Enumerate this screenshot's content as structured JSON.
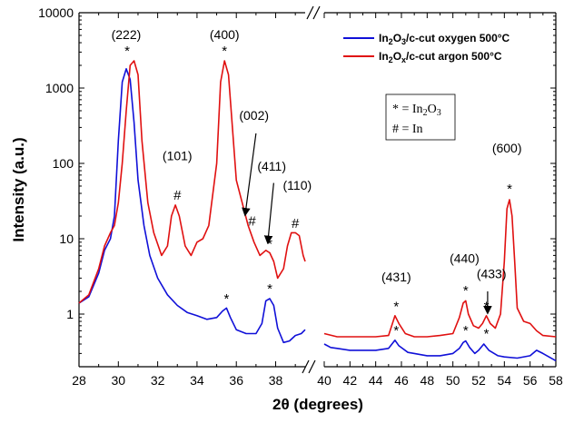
{
  "chart_data": {
    "type": "line",
    "xlabel": "2θ (degrees)",
    "ylabel": "Intensity (a.u.)",
    "y_scale": "log",
    "ylim": [
      0.2,
      10000
    ],
    "x_axis_break": [
      39.5,
      40
    ],
    "x_segments": [
      [
        28,
        39.5
      ],
      [
        40,
        58
      ]
    ],
    "x_ticks": [
      "28",
      "30",
      "32",
      "34",
      "36",
      "38",
      "40",
      "42",
      "44",
      "46",
      "48",
      "50",
      "52",
      "54",
      "56",
      "58"
    ],
    "y_ticks": [
      "1",
      "10",
      "100",
      "1000",
      "10000"
    ],
    "grid": false,
    "legend_position": "top-right",
    "series": [
      {
        "name": "In2O3/c-cut oxygen 500°C",
        "color": "#1010d8",
        "segments": [
          [
            [
              28,
              1.4
            ],
            [
              28.5,
              1.7
            ],
            [
              29,
              3.5
            ],
            [
              29.3,
              7
            ],
            [
              29.6,
              10
            ],
            [
              29.8,
              20
            ],
            [
              30.0,
              200
            ],
            [
              30.2,
              1200
            ],
            [
              30.4,
              1800
            ],
            [
              30.6,
              1300
            ],
            [
              30.8,
              350
            ],
            [
              31.0,
              60
            ],
            [
              31.3,
              15
            ],
            [
              31.6,
              6
            ],
            [
              32,
              3
            ],
            [
              32.5,
              1.8
            ],
            [
              33,
              1.3
            ],
            [
              33.5,
              1.05
            ],
            [
              34,
              0.95
            ],
            [
              34.5,
              0.85
            ],
            [
              35,
              0.9
            ],
            [
              35.3,
              1.1
            ],
            [
              35.5,
              1.2
            ],
            [
              35.7,
              0.9
            ],
            [
              36,
              0.62
            ],
            [
              36.5,
              0.55
            ],
            [
              37,
              0.55
            ],
            [
              37.3,
              0.75
            ],
            [
              37.5,
              1.5
            ],
            [
              37.7,
              1.6
            ],
            [
              37.9,
              1.3
            ],
            [
              38.1,
              0.65
            ],
            [
              38.4,
              0.42
            ],
            [
              38.7,
              0.44
            ],
            [
              39,
              0.52
            ],
            [
              39.3,
              0.55
            ],
            [
              39.5,
              0.62
            ]
          ],
          [
            [
              40,
              0.4
            ],
            [
              40.5,
              0.36
            ],
            [
              41,
              0.35
            ],
            [
              42,
              0.33
            ],
            [
              43,
              0.33
            ],
            [
              44,
              0.33
            ],
            [
              45,
              0.35
            ],
            [
              45.5,
              0.45
            ],
            [
              45.8,
              0.38
            ],
            [
              46.5,
              0.31
            ],
            [
              47,
              0.3
            ],
            [
              48,
              0.28
            ],
            [
              49,
              0.28
            ],
            [
              50,
              0.3
            ],
            [
              50.5,
              0.35
            ],
            [
              50.8,
              0.42
            ],
            [
              51,
              0.44
            ],
            [
              51.3,
              0.36
            ],
            [
              51.7,
              0.3
            ],
            [
              52,
              0.33
            ],
            [
              52.4,
              0.4
            ],
            [
              52.8,
              0.33
            ],
            [
              53.5,
              0.28
            ],
            [
              54,
              0.27
            ],
            [
              55,
              0.26
            ],
            [
              56,
              0.28
            ],
            [
              56.5,
              0.33
            ],
            [
              57,
              0.3
            ],
            [
              58,
              0.24
            ]
          ]
        ]
      },
      {
        "name": "In2Ox/c-cut argon 500°C",
        "color": "#e01010",
        "segments": [
          [
            [
              28,
              1.4
            ],
            [
              28.5,
              1.8
            ],
            [
              29,
              4
            ],
            [
              29.3,
              8
            ],
            [
              29.6,
              12
            ],
            [
              29.8,
              15
            ],
            [
              30.0,
              30
            ],
            [
              30.2,
              100
            ],
            [
              30.4,
              500
            ],
            [
              30.6,
              2000
            ],
            [
              30.8,
              2300
            ],
            [
              31.0,
              1500
            ],
            [
              31.2,
              200
            ],
            [
              31.5,
              30
            ],
            [
              31.8,
              12
            ],
            [
              32.2,
              6
            ],
            [
              32.5,
              8
            ],
            [
              32.7,
              20
            ],
            [
              32.9,
              28
            ],
            [
              33.1,
              20
            ],
            [
              33.4,
              8
            ],
            [
              33.7,
              6
            ],
            [
              34,
              9
            ],
            [
              34.3,
              10
            ],
            [
              34.6,
              15
            ],
            [
              35,
              100
            ],
            [
              35.2,
              1200
            ],
            [
              35.4,
              2300
            ],
            [
              35.6,
              1500
            ],
            [
              35.8,
              300
            ],
            [
              36.0,
              60
            ],
            [
              36.3,
              30
            ],
            [
              36.6,
              15
            ],
            [
              36.9,
              9
            ],
            [
              37.2,
              6
            ],
            [
              37.5,
              7
            ],
            [
              37.7,
              6.5
            ],
            [
              37.9,
              5
            ],
            [
              38.1,
              3
            ],
            [
              38.4,
              4
            ],
            [
              38.6,
              8
            ],
            [
              38.8,
              12
            ],
            [
              39.0,
              12
            ],
            [
              39.2,
              11
            ],
            [
              39.4,
              6
            ],
            [
              39.5,
              5
            ]
          ],
          [
            [
              40,
              0.55
            ],
            [
              41,
              0.5
            ],
            [
              42,
              0.5
            ],
            [
              43,
              0.5
            ],
            [
              44,
              0.5
            ],
            [
              45,
              0.52
            ],
            [
              45.5,
              0.95
            ],
            [
              45.8,
              0.75
            ],
            [
              46.3,
              0.55
            ],
            [
              47,
              0.5
            ],
            [
              48,
              0.5
            ],
            [
              49,
              0.52
            ],
            [
              50,
              0.55
            ],
            [
              50.5,
              0.9
            ],
            [
              50.8,
              1.4
            ],
            [
              51,
              1.5
            ],
            [
              51.2,
              1.0
            ],
            [
              51.6,
              0.7
            ],
            [
              52,
              0.65
            ],
            [
              52.3,
              0.75
            ],
            [
              52.6,
              0.95
            ],
            [
              52.9,
              0.75
            ],
            [
              53.3,
              0.65
            ],
            [
              53.7,
              1.0
            ],
            [
              54,
              5
            ],
            [
              54.2,
              25
            ],
            [
              54.4,
              33
            ],
            [
              54.6,
              20
            ],
            [
              54.8,
              5
            ],
            [
              55,
              1.2
            ],
            [
              55.5,
              0.8
            ],
            [
              56,
              0.75
            ],
            [
              56.5,
              0.6
            ],
            [
              57,
              0.52
            ],
            [
              58,
              0.5
            ]
          ]
        ]
      }
    ],
    "peak_labels": [
      {
        "text": "(222)",
        "x": 30.4,
        "y": 4500
      },
      {
        "text": "(400)",
        "x": 35.4,
        "y": 4500
      },
      {
        "text": "(002)",
        "x": 36.9,
        "y": 380
      },
      {
        "text": "(101)",
        "x": 33.0,
        "y": 110
      },
      {
        "text": "(411)",
        "x": 37.8,
        "y": 80
      },
      {
        "text": "(110)",
        "x": 39.1,
        "y": 45
      },
      {
        "text": "(431)",
        "x": 45.6,
        "y": 2.7
      },
      {
        "text": "(440)",
        "x": 50.9,
        "y": 4.8
      },
      {
        "text": "(433)",
        "x": 53.0,
        "y": 3.0
      },
      {
        "text": "(600)",
        "x": 54.2,
        "y": 140
      }
    ],
    "markers": [
      {
        "text": "*",
        "x": 30.45,
        "y": 2700
      },
      {
        "text": "*",
        "x": 35.4,
        "y": 2700
      },
      {
        "text": "#",
        "x": 33.0,
        "y": 33
      },
      {
        "text": "#",
        "x": 36.8,
        "y": 15
      },
      {
        "text": "*",
        "x": 37.7,
        "y": 7.5
      },
      {
        "text": "#",
        "x": 39.0,
        "y": 14
      },
      {
        "text": "*",
        "x": 35.5,
        "y": 1.4
      },
      {
        "text": "*",
        "x": 37.7,
        "y": 1.9
      },
      {
        "text": "*",
        "x": 45.6,
        "y": 1.1
      },
      {
        "text": "*",
        "x": 45.6,
        "y": 0.53
      },
      {
        "text": "*",
        "x": 51.0,
        "y": 1.8
      },
      {
        "text": "*",
        "x": 51.0,
        "y": 0.53
      },
      {
        "text": "*",
        "x": 52.6,
        "y": 1.1
      },
      {
        "text": "*",
        "x": 52.6,
        "y": 0.48
      },
      {
        "text": "*",
        "x": 54.4,
        "y": 40
      }
    ],
    "arrows": [
      {
        "from": [
          37.0,
          250
        ],
        "to": [
          36.45,
          21
        ]
      },
      {
        "from": [
          37.9,
          55
        ],
        "to": [
          37.6,
          9
        ]
      },
      {
        "from": [
          52.7,
          2.0
        ],
        "to": [
          52.7,
          1.05
        ]
      }
    ],
    "notes": [
      "* = In",
      "2",
      "O",
      "3",
      "# = In"
    ]
  }
}
